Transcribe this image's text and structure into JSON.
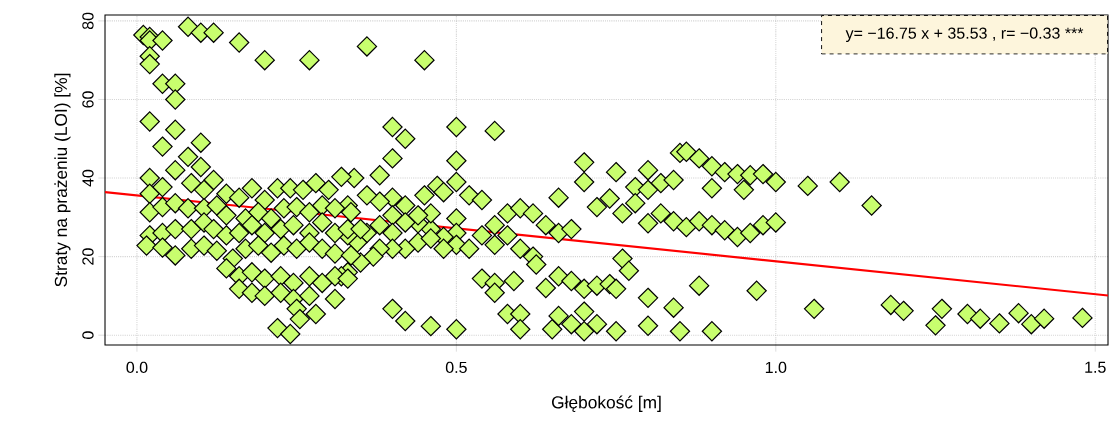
{
  "chart_data": {
    "type": "scatter",
    "xlabel": "Głębokość [m]",
    "ylabel": "Straty na prażeniu (LOI) [%]",
    "annotations": [
      "y= −16.75 x + 35.53 ,  r= −0.33 ***"
    ],
    "xlim": [
      -0.05,
      1.52
    ],
    "ylim": [
      -2.5,
      81.5
    ],
    "xticks": [
      {
        "value": 0,
        "label": "0.0"
      },
      0.5,
      {
        "value": 1,
        "label": "1.0"
      },
      1.5
    ],
    "yticks": [
      0,
      20,
      40,
      60,
      80
    ],
    "grid": true,
    "marker": "diamond",
    "series": [
      {
        "color": "#c8fe6e",
        "x": [
          0.01,
          0.02,
          0.02,
          0.04,
          0.02,
          0.02,
          0.04,
          0.06,
          0.06,
          0.08,
          0.1,
          0.12,
          0.16,
          0.2,
          0.27,
          0.36,
          0.45,
          0.02,
          0.06,
          0.04,
          0.1,
          0.4,
          0.42,
          0.4,
          0.5,
          0.56,
          0.5,
          0.7,
          0.75,
          0.8,
          0.85,
          0.86,
          0.88,
          0.9,
          0.92,
          0.94,
          0.96,
          0.98,
          1.0,
          1.05,
          1.1,
          1.15,
          0.7,
          0.78,
          0.82,
          0.84,
          0.9,
          0.95,
          0.72,
          0.74,
          0.76,
          0.78,
          0.8,
          0.8,
          0.82,
          0.84,
          0.86,
          0.88,
          0.9,
          0.92,
          0.94,
          0.96,
          0.98,
          1.0,
          0.76,
          0.77,
          0.88,
          0.97,
          1.06,
          0.8,
          0.84,
          0.8,
          0.85,
          0.9,
          0.75,
          0.7,
          0.72,
          0.7,
          0.72,
          0.74,
          0.75,
          1.18,
          1.2,
          1.26,
          1.25,
          1.3,
          1.32,
          1.35,
          1.38,
          1.4,
          1.42,
          1.48,
          0.66,
          0.38,
          0.34,
          0.32,
          0.47,
          0.48,
          0.5,
          0.52,
          0.54,
          0.45,
          0.42,
          0.4,
          0.38,
          0.36,
          0.33,
          0.58,
          0.6,
          0.62,
          0.64,
          0.66,
          0.68,
          0.56,
          0.54,
          0.56,
          0.58,
          0.6,
          0.62,
          0.625,
          0.5,
          0.5,
          0.5,
          0.48,
          0.46,
          0.44,
          0.46,
          0.44,
          0.42,
          0.4,
          0.4,
          0.38,
          0.36,
          0.345,
          0.33,
          0.44,
          0.46,
          0.48,
          0.52,
          0.42,
          0.4,
          0.38,
          0.37,
          0.35,
          0.33,
          0.32,
          0.54,
          0.56,
          0.56,
          0.59,
          0.64,
          0.66,
          0.68,
          0.4,
          0.42,
          0.46,
          0.5,
          0.58,
          0.6,
          0.6,
          0.65,
          0.66,
          0.68,
          0.7,
          0.08,
          0.06,
          0.1,
          0.12,
          0.02,
          0.04,
          0.02,
          0.085,
          0.105,
          0.14,
          0.16,
          0.18,
          0.2,
          0.22,
          0.24,
          0.26,
          0.28,
          0.3,
          0.02,
          0.04,
          0.06,
          0.08,
          0.105,
          0.125,
          0.14,
          0.17,
          0.19,
          0.21,
          0.23,
          0.25,
          0.27,
          0.29,
          0.31,
          0.335,
          0.02,
          0.04,
          0.06,
          0.085,
          0.105,
          0.12,
          0.14,
          0.16,
          0.18,
          0.2,
          0.225,
          0.245,
          0.27,
          0.29,
          0.31,
          0.33,
          0.35,
          0.015,
          0.04,
          0.06,
          0.085,
          0.105,
          0.125,
          0.15,
          0.17,
          0.19,
          0.21,
          0.23,
          0.25,
          0.27,
          0.29,
          0.31,
          0.335,
          0.14,
          0.16,
          0.18,
          0.2,
          0.225,
          0.245,
          0.27,
          0.29,
          0.31,
          0.33,
          0.16,
          0.18,
          0.2,
          0.225,
          0.245,
          0.27,
          0.31,
          0.25,
          0.28,
          0.255,
          0.22,
          0.24
        ],
        "values": [
          76.4,
          75.9,
          75,
          75,
          71,
          69,
          64,
          64,
          60,
          78.5,
          77,
          77,
          74.5,
          70,
          70,
          73.5,
          70,
          54.4,
          52.3,
          48,
          49,
          53,
          50,
          45,
          53,
          52,
          44.4,
          44,
          41.5,
          42,
          46.4,
          46.7,
          45,
          43,
          41.5,
          41,
          40.7,
          41,
          39,
          38,
          39,
          33,
          39,
          37.7,
          38.7,
          39.5,
          37.4,
          37,
          32.6,
          34.8,
          31,
          33.6,
          37,
          28.5,
          31,
          29,
          27.5,
          29,
          28,
          26.7,
          25,
          26,
          28,
          28.7,
          19.5,
          16.4,
          12.6,
          11.3,
          6.7,
          9.5,
          7,
          2.4,
          1,
          1,
          1,
          6,
          2.8,
          11.8,
          12.6,
          13,
          11.8,
          7.7,
          6.2,
          6.7,
          2.5,
          5.4,
          4.2,
          3,
          5.6,
          2.8,
          4.2,
          4.4,
          35,
          40.7,
          40,
          40.3,
          38,
          36.4,
          39,
          35.6,
          34.4,
          35.6,
          33,
          35,
          34,
          35.6,
          33,
          31,
          32.3,
          31,
          28,
          26,
          27,
          28,
          25.4,
          23,
          25.4,
          22,
          20,
          18,
          29.7,
          26,
          23,
          25,
          27,
          28.5,
          31,
          30.5,
          28.7,
          30.5,
          26,
          28,
          26,
          23.6,
          25.4,
          23.6,
          24.6,
          22,
          22,
          22,
          22,
          22,
          20,
          18.5,
          16,
          15,
          14.4,
          13.3,
          10.8,
          13.8,
          12,
          15,
          13.8,
          6.7,
          3.6,
          2.3,
          1.5,
          5.4,
          5.4,
          1.5,
          1.5,
          4.9,
          2.8,
          1,
          45.4,
          42,
          42.8,
          39.5,
          40,
          37.7,
          36,
          38.7,
          37,
          36,
          35,
          37.4,
          34.4,
          37.4,
          37.4,
          37,
          38.7,
          37,
          31.3,
          32.6,
          33.6,
          32.3,
          32.3,
          33,
          30.5,
          29.7,
          31.3,
          29.7,
          32.3,
          32.6,
          31.3,
          33,
          32.3,
          31.3,
          25.4,
          26,
          27,
          27,
          28.7,
          27,
          25.4,
          26,
          28,
          26,
          27,
          28,
          26,
          28.7,
          26,
          27,
          27,
          22.8,
          22.3,
          20.3,
          22,
          22.8,
          21.5,
          19.5,
          22,
          22.8,
          21,
          22.8,
          22,
          23.6,
          22,
          20.8,
          20.3,
          17,
          15,
          16,
          14.4,
          15,
          13.3,
          15,
          13.3,
          15,
          14.4,
          11.8,
          10.8,
          10,
          10.8,
          9.2,
          10,
          9.2,
          6.7,
          5.4,
          4.1,
          1.8,
          0.3
        ]
      },
      {
        "type": "line",
        "color": "#ff0000",
        "marker": "none",
        "line_style": "solid",
        "x": [
          -0.05,
          1.52
        ],
        "values": [
          36.4,
          10.1
        ]
      }
    ]
  }
}
